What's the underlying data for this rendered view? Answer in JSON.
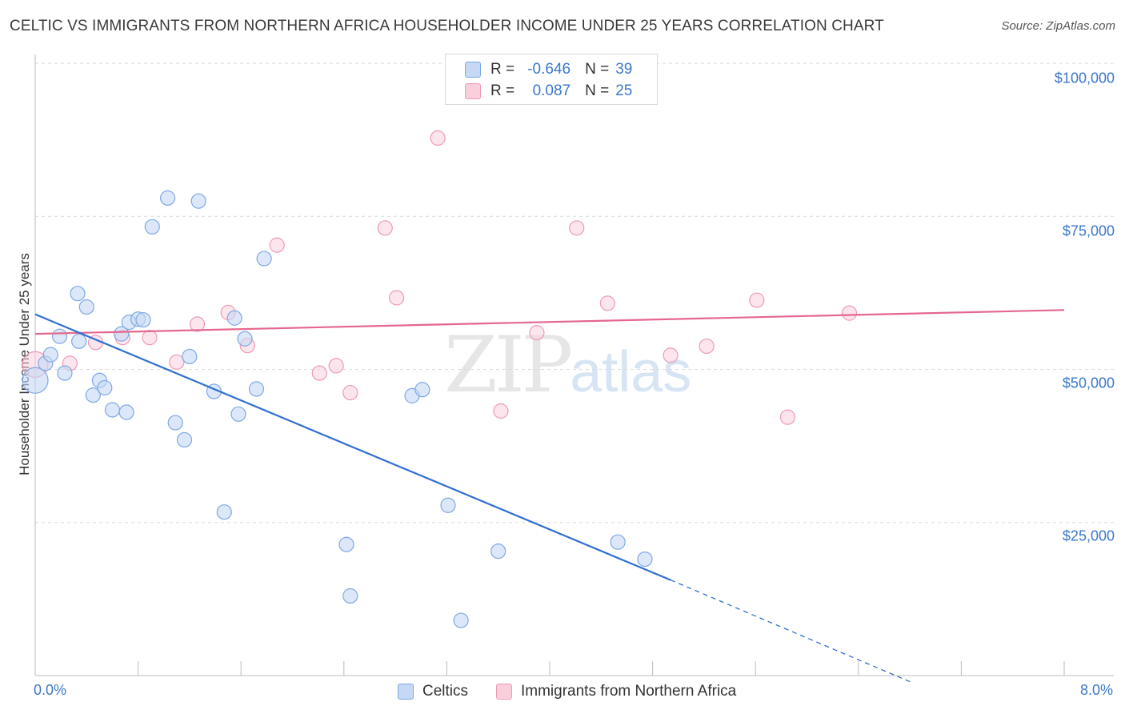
{
  "title": "CELTIC VS IMMIGRANTS FROM NORTHERN AFRICA HOUSEHOLDER INCOME UNDER 25 YEARS CORRELATION CHART",
  "source": "Source: ZipAtlas.com",
  "watermark": {
    "zip": "ZIP",
    "atlas": "atlas"
  },
  "legend": {
    "r_label": "R =",
    "n_label": "N =",
    "series": [
      {
        "name": "Celtics",
        "r": "-0.646",
        "n": "39"
      },
      {
        "name": "Immigrants from Northern Africa",
        "r": "0.087",
        "n": "25"
      }
    ]
  },
  "colors": {
    "celtics_fill": "#c5d8f5",
    "celtics_stroke": "#7fa8e3",
    "celtics_line": "#2f6fd0",
    "immig_fill": "#f9cfdc",
    "immig_stroke": "#ef9ab6",
    "immig_line": "#e5668f",
    "grid": "#dcdcdc",
    "tick_text": "#3b78c9"
  },
  "chart_data": {
    "type": "scatter",
    "title": "CELTIC VS IMMIGRANTS FROM NORTHERN AFRICA HOUSEHOLDER INCOME UNDER 25 YEARS CORRELATION CHART",
    "xlabel": "",
    "ylabel": "Householder Income Under 25 years",
    "xlim": [
      0,
      8
    ],
    "ylim": [
      0,
      105000
    ],
    "x_tick_labels": [
      {
        "value": 0,
        "label": "0.0%"
      },
      {
        "value": 8,
        "label": "8.0%"
      }
    ],
    "y_ticks": [
      {
        "value": 25000,
        "label": "$25,000"
      },
      {
        "value": 50000,
        "label": "$50,000"
      },
      {
        "value": 75000,
        "label": "$75,000"
      },
      {
        "value": 100000,
        "label": "$100,000"
      }
    ],
    "series": [
      {
        "name": "Celtics",
        "points": [
          [
            0.0,
            48200
          ],
          [
            0.08,
            51000
          ],
          [
            0.12,
            52400
          ],
          [
            0.19,
            55400
          ],
          [
            0.23,
            49400
          ],
          [
            0.33,
            62400
          ],
          [
            0.34,
            54600
          ],
          [
            0.4,
            60200
          ],
          [
            0.45,
            45800
          ],
          [
            0.5,
            48200
          ],
          [
            0.54,
            47000
          ],
          [
            0.6,
            43400
          ],
          [
            0.67,
            55800
          ],
          [
            0.71,
            43000
          ],
          [
            0.73,
            57700
          ],
          [
            0.8,
            58200
          ],
          [
            0.84,
            58100
          ],
          [
            0.91,
            73300
          ],
          [
            1.03,
            78000
          ],
          [
            1.09,
            41300
          ],
          [
            1.16,
            38500
          ],
          [
            1.2,
            52100
          ],
          [
            1.27,
            77500
          ],
          [
            1.39,
            46400
          ],
          [
            1.47,
            26700
          ],
          [
            1.55,
            58400
          ],
          [
            1.58,
            42700
          ],
          [
            1.63,
            55000
          ],
          [
            1.72,
            46800
          ],
          [
            1.78,
            68100
          ],
          [
            2.42,
            21400
          ],
          [
            2.45,
            13000
          ],
          [
            2.93,
            45700
          ],
          [
            3.01,
            46700
          ],
          [
            3.21,
            27800
          ],
          [
            3.31,
            9000
          ],
          [
            3.6,
            20300
          ],
          [
            4.53,
            21800
          ],
          [
            4.74,
            19000
          ]
        ],
        "trend": {
          "x0": 0.0,
          "y0": 59000,
          "x1": 4.94,
          "y1": 15600,
          "dashed_to_x": 6.8,
          "dashed_to_y": -1000
        }
      },
      {
        "name": "Immigrants from Northern Africa",
        "points": [
          [
            0.0,
            50800
          ],
          [
            0.27,
            51000
          ],
          [
            0.47,
            54400
          ],
          [
            0.68,
            55200
          ],
          [
            0.89,
            55200
          ],
          [
            1.1,
            51200
          ],
          [
            1.26,
            57400
          ],
          [
            1.5,
            59300
          ],
          [
            1.65,
            53900
          ],
          [
            1.88,
            70300
          ],
          [
            2.21,
            49400
          ],
          [
            2.34,
            50600
          ],
          [
            2.45,
            46200
          ],
          [
            2.72,
            73100
          ],
          [
            2.81,
            61700
          ],
          [
            3.13,
            87800
          ],
          [
            3.62,
            43200
          ],
          [
            3.9,
            56000
          ],
          [
            4.21,
            73100
          ],
          [
            4.45,
            60800
          ],
          [
            4.94,
            52300
          ],
          [
            5.22,
            53800
          ],
          [
            5.61,
            61300
          ],
          [
            5.85,
            42200
          ],
          [
            6.33,
            59200
          ]
        ],
        "trend": {
          "x0": 0.0,
          "y0": 55800,
          "x1": 8.0,
          "y1": 59700
        }
      }
    ]
  }
}
